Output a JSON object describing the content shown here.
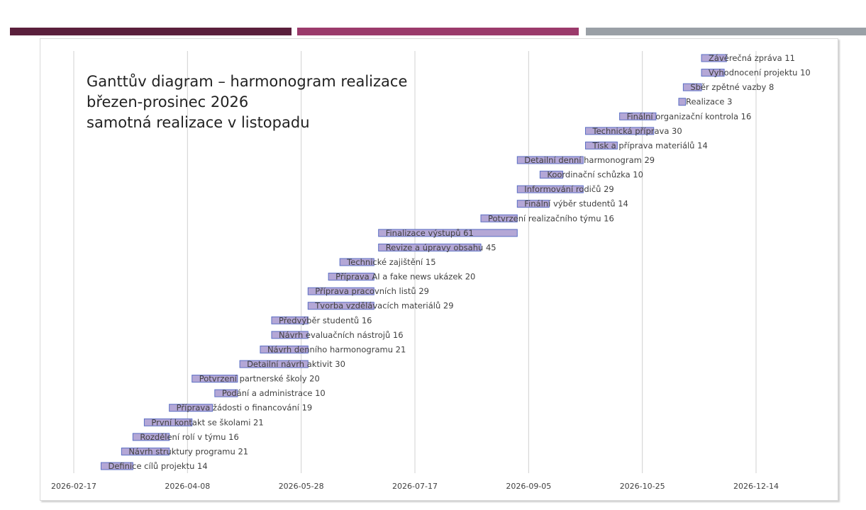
{
  "colors": {
    "accent_dark": "#5a1f3c",
    "accent_mid": "#9b3a6b",
    "accent_grey": "#9aa0a6",
    "bar_fill": "#b4a7d6",
    "bar_stroke": "#5b6fc4",
    "gridline": "#d0d0d0"
  },
  "title_lines": [
    "Ganttův diagram – harmonogram realizace",
    "březen-prosinec 2026",
    "samotná realizace v listopadu"
  ],
  "chart_data": {
    "type": "gantt",
    "x_axis": {
      "ticks": [
        "2026-02-17",
        "2026-04-08",
        "2026-05-28",
        "2026-07-17",
        "2026-09-05",
        "2026-10-25",
        "2026-12-14"
      ],
      "range": [
        "2026-02-17",
        "2026-12-14"
      ],
      "grid": true
    },
    "tasks": [
      {
        "label": "Definice cílů projektu 14",
        "start": "2026-03-01",
        "duration": 14
      },
      {
        "label": "Návrh struktury programu 21",
        "start": "2026-03-10",
        "duration": 21
      },
      {
        "label": "Rozdělení rolí v týmu 16",
        "start": "2026-03-15",
        "duration": 16
      },
      {
        "label": "První kontakt se školami 21",
        "start": "2026-03-20",
        "duration": 21
      },
      {
        "label": "Příprava žádosti o financování 19",
        "start": "2026-03-31",
        "duration": 19
      },
      {
        "label": "Podání a administrace 10",
        "start": "2026-04-20",
        "duration": 10
      },
      {
        "label": "Potvrzení partnerské školy 20",
        "start": "2026-04-10",
        "duration": 20
      },
      {
        "label": "Detailní návrh aktivit 30",
        "start": "2026-05-01",
        "duration": 30
      },
      {
        "label": "Návrh denního harmonogramu 21",
        "start": "2026-05-10",
        "duration": 21
      },
      {
        "label": "Návrh evaluačních nástrojů 16",
        "start": "2026-05-15",
        "duration": 16
      },
      {
        "label": "Předvýběr studentů 16",
        "start": "2026-05-15",
        "duration": 16
      },
      {
        "label": "Tvorba vzdělávacích materiálů 29",
        "start": "2026-05-31",
        "duration": 29
      },
      {
        "label": "Příprava pracovních listů 29",
        "start": "2026-05-31",
        "duration": 29
      },
      {
        "label": "Příprava AI a fake news ukázek 20",
        "start": "2026-06-09",
        "duration": 20
      },
      {
        "label": "Technické zajištění 15",
        "start": "2026-06-14",
        "duration": 15
      },
      {
        "label": "Revize a úpravy obsahu 45",
        "start": "2026-07-01",
        "duration": 45
      },
      {
        "label": "Finalizace výstupů 61",
        "start": "2026-07-01",
        "duration": 61
      },
      {
        "label": "Potvrzení realizačního týmu 16",
        "start": "2026-08-15",
        "duration": 16
      },
      {
        "label": "Finální výběr studentů 14",
        "start": "2026-08-31",
        "duration": 14
      },
      {
        "label": "Informování rodičů 29",
        "start": "2026-08-31",
        "duration": 29
      },
      {
        "label": "Koordinační schůzka 10",
        "start": "2026-09-10",
        "duration": 10
      },
      {
        "label": "Detailní denní harmonogram 29",
        "start": "2026-08-31",
        "duration": 29
      },
      {
        "label": "Tisk a příprava materiálů 14",
        "start": "2026-09-30",
        "duration": 14
      },
      {
        "label": "Technická příprava 30",
        "start": "2026-09-30",
        "duration": 30
      },
      {
        "label": "Finální organizační kontrola 16",
        "start": "2026-10-15",
        "duration": 16
      },
      {
        "label": "Realizace  3",
        "start": "2026-11-10",
        "duration": 3
      },
      {
        "label": "Sběr zpětné vazby 8",
        "start": "2026-11-12",
        "duration": 8
      },
      {
        "label": "Vyhodnocení projektu 10",
        "start": "2026-11-20",
        "duration": 10
      },
      {
        "label": "Závěrečná zpráva 11",
        "start": "2026-11-20",
        "duration": 11
      }
    ]
  }
}
